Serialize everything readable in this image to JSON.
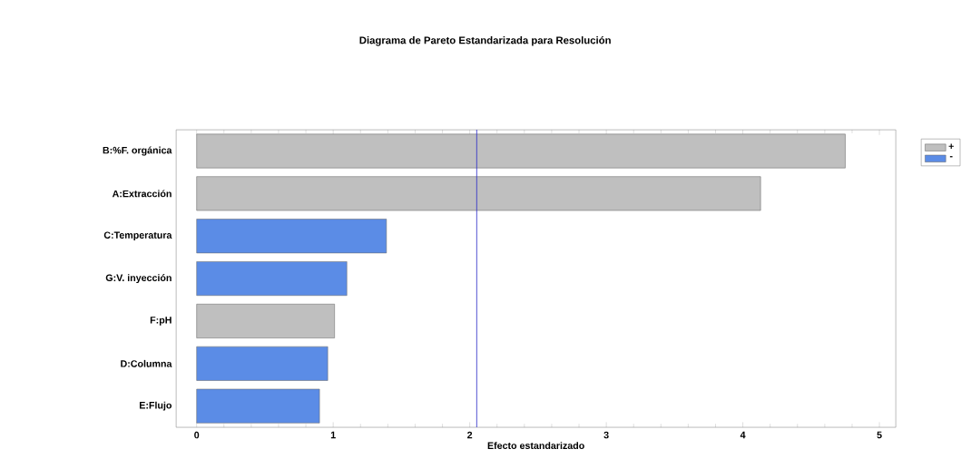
{
  "chart_data": {
    "type": "bar",
    "orientation": "horizontal",
    "title": "Diagrama de Pareto Estandarizada para Resolución",
    "xlabel": "Efecto estandarizado",
    "categories": [
      "B:%F. orgánica",
      "A:Extracción",
      "C:Temperatura",
      "G:V. inyección",
      "F:pH",
      "D:Columna",
      "E:Flujo"
    ],
    "series": [
      {
        "name": "+",
        "color": "#bfbfbf",
        "values": [
          4.75,
          4.13,
          null,
          null,
          1.01,
          null,
          null
        ]
      },
      {
        "name": "-",
        "color": "#5b8ce6",
        "values": [
          null,
          null,
          1.39,
          1.1,
          null,
          0.96,
          0.9
        ]
      }
    ],
    "xlim": [
      -0.15,
      5.12
    ],
    "xticks": [
      0,
      1,
      2,
      3,
      4,
      5
    ],
    "ref_lines": [
      {
        "axis": "x",
        "value": 2.05,
        "color": "#2b2bc8"
      }
    ],
    "grid": false,
    "legend": "top right"
  }
}
